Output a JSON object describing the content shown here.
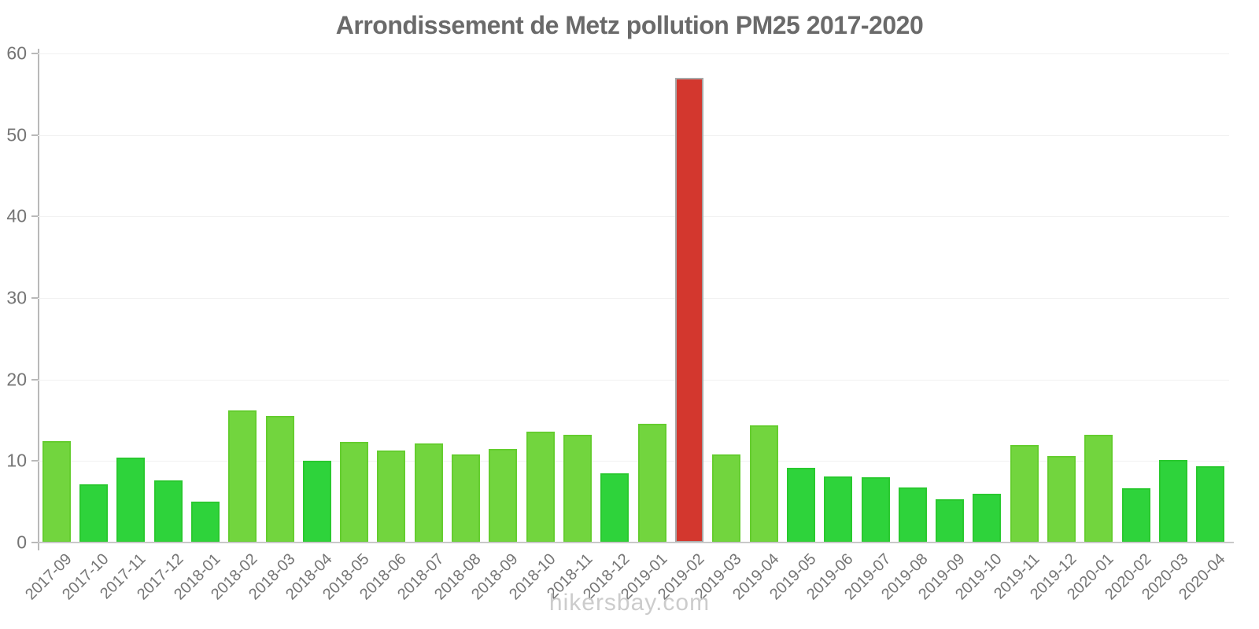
{
  "chart_data": {
    "type": "bar",
    "title": "Arrondissement de Metz pollution PM25 2017-2020",
    "xlabel": "",
    "ylabel": "",
    "ylim": [
      0,
      60
    ],
    "yticks": [
      0,
      10,
      20,
      30,
      40,
      50,
      60
    ],
    "grid": true,
    "legend": "none",
    "categories": [
      "2017-09",
      "2017-10",
      "2017-11",
      "2017-12",
      "2018-01",
      "2018-02",
      "2018-03",
      "2018-04",
      "2018-05",
      "2018-06",
      "2018-07",
      "2018-08",
      "2018-09",
      "2018-10",
      "2018-11",
      "2018-12",
      "2019-01",
      "2019-02",
      "2019-03",
      "2019-04",
      "2019-05",
      "2019-06",
      "2019-07",
      "2019-08",
      "2019-09",
      "2019-10",
      "2019-11",
      "2019-12",
      "2020-01",
      "2020-02",
      "2020-03",
      "2020-04"
    ],
    "values": [
      12.4,
      7.1,
      10.4,
      7.6,
      5.0,
      16.2,
      15.5,
      10.0,
      12.3,
      11.3,
      12.2,
      10.8,
      11.5,
      13.6,
      13.2,
      8.5,
      14.6,
      57.0,
      10.8,
      14.4,
      9.2,
      8.1,
      8.0,
      6.8,
      5.3,
      6.0,
      12.0,
      10.6,
      13.2,
      6.7,
      10.1,
      9.4
    ],
    "bar_color_keys": [
      "light",
      "dark",
      "dark",
      "dark",
      "dark",
      "light",
      "light",
      "dark",
      "light",
      "light",
      "light",
      "light",
      "light",
      "light",
      "light",
      "dark",
      "light",
      "red",
      "light",
      "light",
      "dark",
      "dark",
      "dark",
      "dark",
      "dark",
      "dark",
      "light",
      "light",
      "light",
      "dark",
      "dark",
      "dark"
    ],
    "colors": {
      "light": "#72d53e",
      "dark": "#2ed33b",
      "red": "#d3372e"
    },
    "highlight": {
      "category": "2019-02",
      "value": 57.0,
      "color": "#d3372e"
    }
  },
  "footer": {
    "watermark": "hikersbay.com"
  }
}
